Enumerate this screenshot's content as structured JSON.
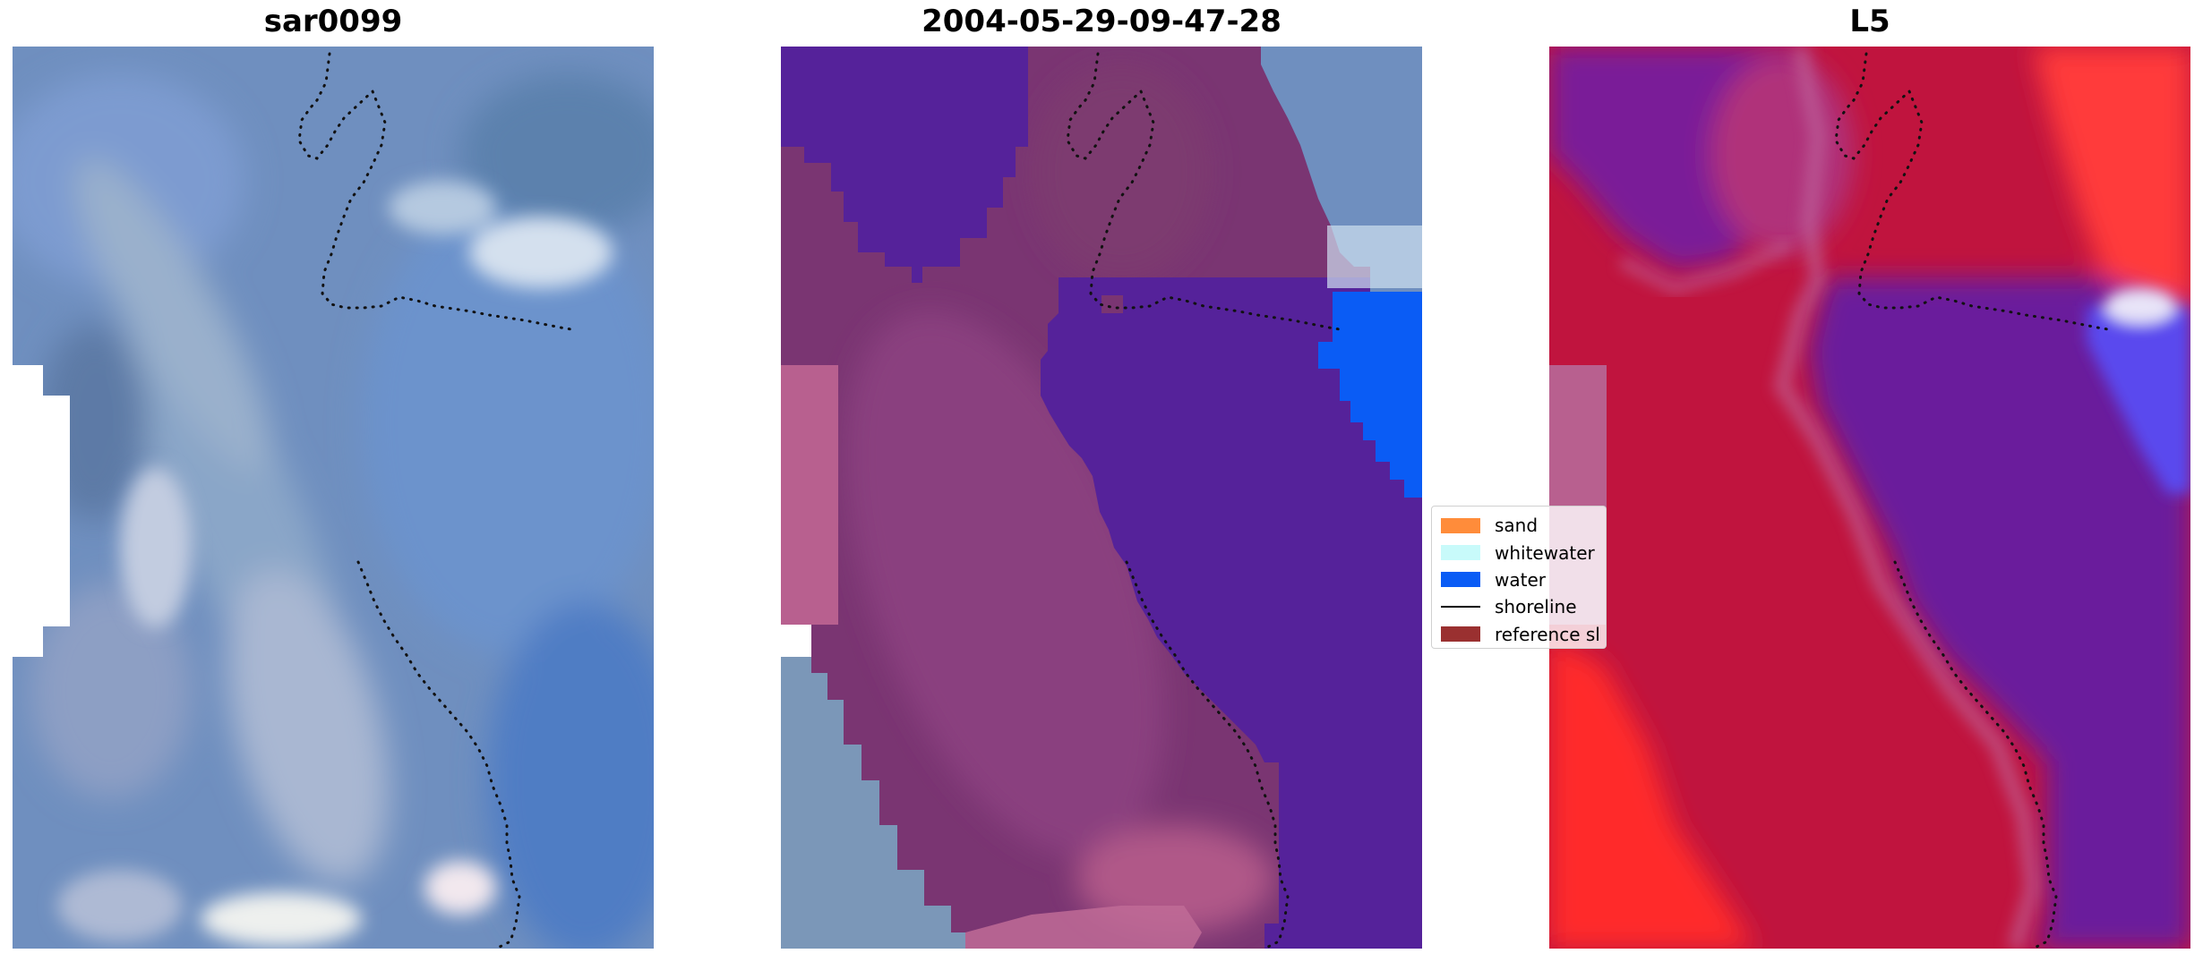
{
  "panels": [
    {
      "title": "sar0099"
    },
    {
      "title": "2004-05-29-09-47-28"
    },
    {
      "title": "L5"
    }
  ],
  "legend": {
    "items": [
      {
        "label": "sand",
        "color": "#ff8c3a",
        "kind": "patch"
      },
      {
        "label": "whitewater",
        "color": "#c8fafa",
        "kind": "patch"
      },
      {
        "label": "water",
        "color": "#0a5cf5",
        "kind": "patch"
      },
      {
        "label": "shoreline",
        "color": "#000000",
        "kind": "line"
      },
      {
        "label": "reference sl",
        "color": "#9a3030",
        "kind": "patch"
      }
    ]
  },
  "colors": {
    "rgb_base": "#6f8fbf",
    "class_purple": "#55229a",
    "class_magenta": "#7a3572",
    "class_pink": "#b8608f",
    "water_blue": "#0a5cf5",
    "prob_red": "#e0143c",
    "prob_bright_red": "#ff2a2a",
    "prob_purple": "#6a1f9c"
  }
}
